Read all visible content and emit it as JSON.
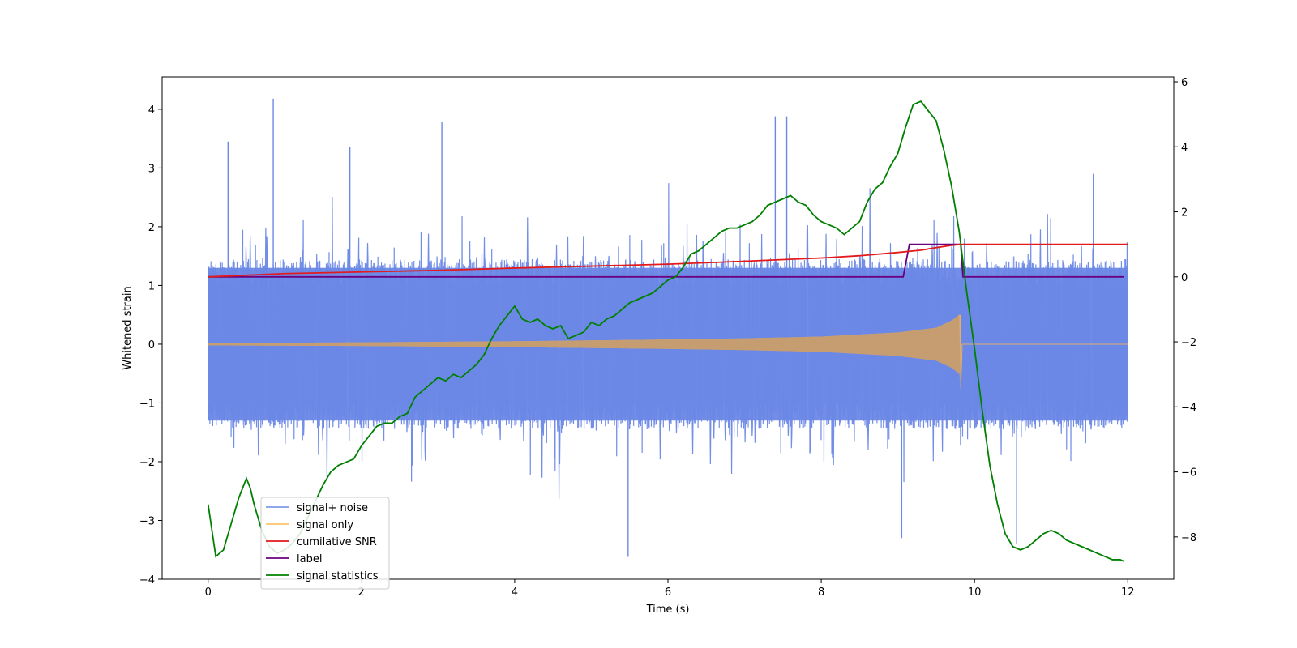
{
  "chart_data": {
    "type": "line",
    "title": "",
    "xlabel": "Time (s)",
    "ylabel": "Whitened strain",
    "y2label": "",
    "xlim": [
      -0.6,
      12.6
    ],
    "ylim": [
      -4.0,
      4.55
    ],
    "y2lim": [
      -9.3,
      6.15
    ],
    "xticks": [
      0,
      2,
      4,
      6,
      8,
      10,
      12
    ],
    "yticks": [
      -4,
      -3,
      -2,
      -1,
      0,
      1,
      2,
      3,
      4
    ],
    "y2ticks": [
      -8,
      -6,
      -4,
      -2,
      0,
      2,
      4,
      6
    ],
    "xtick_labels": [
      "0",
      "2",
      "4",
      "6",
      "8",
      "10",
      "12"
    ],
    "ytick_labels": [
      "−4",
      "−3",
      "−2",
      "−1",
      "0",
      "1",
      "2",
      "3",
      "4"
    ],
    "y2tick_labels": [
      "−8",
      "−6",
      "−4",
      "−2",
      "0",
      "2",
      "4",
      "6"
    ],
    "grid": false,
    "legend_position": "lower-left",
    "series": [
      {
        "name": "signal+ noise",
        "axis": "left",
        "color": "#6b88e6",
        "kind": "noise",
        "description_values": {
          "x_range": [
            0,
            12
          ],
          "center": 0,
          "band_core": [
            -1.3,
            1.3
          ],
          "peaks": [
            [
              0.26,
              3.45
            ],
            [
              0.85,
              4.18
            ],
            [
              1.85,
              3.35
            ],
            [
              3.05,
              3.78
            ],
            [
              5.48,
              -3.62
            ],
            [
              7.4,
              3.88
            ],
            [
              7.55,
              3.88
            ],
            [
              9.05,
              -3.3
            ],
            [
              10.55,
              -3.4
            ],
            [
              11.55,
              2.9
            ]
          ],
          "upper_envelope": [
            [
              0,
              2.0
            ],
            [
              1,
              2.6
            ],
            [
              2,
              2.6
            ],
            [
              3,
              2.6
            ],
            [
              4,
              2.6
            ],
            [
              5,
              2.7
            ],
            [
              6,
              2.9
            ],
            [
              7,
              2.7
            ],
            [
              8,
              2.7
            ],
            [
              9,
              2.9
            ],
            [
              10,
              2.7
            ],
            [
              11,
              2.6
            ],
            [
              12,
              2.5
            ]
          ],
          "lower_envelope": [
            [
              0,
              -2.5
            ],
            [
              1,
              -2.7
            ],
            [
              2,
              -2.6
            ],
            [
              3,
              -2.7
            ],
            [
              4,
              -2.9
            ],
            [
              5,
              -2.8
            ],
            [
              6,
              -2.8
            ],
            [
              7,
              -2.7
            ],
            [
              8,
              -2.6
            ],
            [
              9,
              -2.8
            ],
            [
              10,
              -2.8
            ],
            [
              11,
              -2.7
            ],
            [
              12,
              -2.2
            ]
          ]
        }
      },
      {
        "name": "signal only",
        "axis": "left",
        "color": "#ffb84d",
        "kind": "chirp",
        "envelope": [
          [
            0,
            0.02
          ],
          [
            2,
            0.03
          ],
          [
            4,
            0.05
          ],
          [
            6,
            0.08
          ],
          [
            7,
            0.1
          ],
          [
            8,
            0.13
          ],
          [
            9,
            0.2
          ],
          [
            9.5,
            0.28
          ],
          [
            9.7,
            0.4
          ],
          [
            9.8,
            0.5
          ]
        ],
        "end_min": -0.75,
        "cutoff": 9.82,
        "x_range": [
          0,
          12
        ]
      },
      {
        "name": "cumilative SNR",
        "axis": "right",
        "color": "#e31a1c",
        "x": [
          0,
          1,
          2,
          3,
          4,
          5,
          6,
          7,
          8,
          8.5,
          9,
          9.3,
          9.5,
          9.7,
          9.82,
          10,
          12
        ],
        "y": [
          0.0,
          0.1,
          0.15,
          0.2,
          0.27,
          0.33,
          0.39,
          0.48,
          0.58,
          0.65,
          0.75,
          0.82,
          0.9,
          0.97,
          1.0,
          1.0,
          1.0
        ]
      },
      {
        "name": "label",
        "axis": "right",
        "color": "#6a0080",
        "x": [
          0,
          9.07,
          9.15,
          9.82,
          9.85,
          11.95
        ],
        "y": [
          0,
          0,
          1,
          1,
          0,
          0
        ]
      },
      {
        "name": "signal statistics",
        "axis": "right",
        "color": "#008000",
        "x": [
          0,
          0.1,
          0.2,
          0.3,
          0.4,
          0.45,
          0.5,
          0.55,
          0.6,
          0.7,
          0.8,
          0.9,
          1.0,
          1.1,
          1.2,
          1.3,
          1.4,
          1.5,
          1.6,
          1.7,
          1.8,
          1.9,
          2.0,
          2.1,
          2.2,
          2.3,
          2.4,
          2.5,
          2.6,
          2.7,
          2.8,
          2.9,
          3.0,
          3.1,
          3.2,
          3.3,
          3.4,
          3.5,
          3.6,
          3.7,
          3.8,
          3.9,
          4.0,
          4.1,
          4.2,
          4.3,
          4.4,
          4.5,
          4.6,
          4.7,
          4.8,
          4.9,
          5.0,
          5.1,
          5.2,
          5.3,
          5.4,
          5.5,
          5.6,
          5.7,
          5.8,
          5.9,
          6.0,
          6.1,
          6.2,
          6.3,
          6.4,
          6.5,
          6.6,
          6.7,
          6.8,
          6.9,
          7.0,
          7.1,
          7.2,
          7.3,
          7.4,
          7.5,
          7.6,
          7.7,
          7.8,
          7.9,
          8.0,
          8.1,
          8.2,
          8.3,
          8.4,
          8.5,
          8.6,
          8.7,
          8.8,
          8.9,
          9.0,
          9.1,
          9.2,
          9.3,
          9.4,
          9.5,
          9.6,
          9.7,
          9.8,
          9.9,
          10.0,
          10.1,
          10.2,
          10.3,
          10.4,
          10.5,
          10.6,
          10.7,
          10.8,
          10.9,
          11.0,
          11.1,
          11.2,
          11.3,
          11.4,
          11.5,
          11.6,
          11.7,
          11.8,
          11.9,
          11.95
        ],
        "y": [
          -7.0,
          -8.6,
          -8.4,
          -7.6,
          -6.8,
          -6.5,
          -6.2,
          -6.5,
          -7.0,
          -7.8,
          -8.3,
          -8.5,
          -8.4,
          -8.2,
          -7.9,
          -7.4,
          -6.9,
          -6.4,
          -6.0,
          -5.8,
          -5.7,
          -5.6,
          -5.2,
          -4.9,
          -4.6,
          -4.5,
          -4.5,
          -4.3,
          -4.2,
          -3.7,
          -3.5,
          -3.3,
          -3.1,
          -3.2,
          -3.0,
          -3.1,
          -2.9,
          -2.7,
          -2.4,
          -1.9,
          -1.5,
          -1.2,
          -0.9,
          -1.3,
          -1.4,
          -1.3,
          -1.5,
          -1.6,
          -1.5,
          -1.9,
          -1.8,
          -1.7,
          -1.4,
          -1.5,
          -1.3,
          -1.2,
          -1.0,
          -0.8,
          -0.7,
          -0.6,
          -0.5,
          -0.3,
          -0.1,
          0.0,
          0.3,
          0.7,
          0.8,
          1.0,
          1.2,
          1.4,
          1.5,
          1.5,
          1.6,
          1.7,
          1.9,
          2.2,
          2.3,
          2.4,
          2.5,
          2.3,
          2.2,
          1.9,
          1.7,
          1.6,
          1.5,
          1.3,
          1.5,
          1.7,
          2.3,
          2.7,
          2.9,
          3.4,
          3.8,
          4.6,
          5.3,
          5.4,
          5.1,
          4.8,
          3.9,
          2.8,
          1.4,
          -0.5,
          -2.2,
          -4.1,
          -5.8,
          -7.0,
          -7.9,
          -8.3,
          -8.4,
          -8.3,
          -8.1,
          -7.9,
          -7.8,
          -7.9,
          -8.1,
          -8.2,
          -8.3,
          -8.4,
          -8.5,
          -8.6,
          -8.7,
          -8.7,
          -8.75
        ]
      }
    ]
  }
}
